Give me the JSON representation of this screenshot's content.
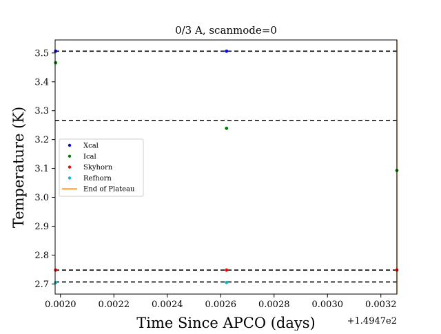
{
  "chart_data": {
    "type": "scatter",
    "title": "0/3 A, scanmode=0",
    "xlabel": "Time Since APCO (days)",
    "ylabel": "Temperature (K)",
    "x_offset_label": "+1.4947e2",
    "xlim": [
      0.00198,
      0.00326
    ],
    "ylim": [
      2.665,
      3.545
    ],
    "xticks": [
      0.002,
      0.0022,
      0.0024,
      0.0026,
      0.0028,
      0.003,
      0.0032
    ],
    "xtick_labels": [
      "0.0020",
      "0.0022",
      "0.0024",
      "0.0026",
      "0.0028",
      "0.0030",
      "0.0032"
    ],
    "yticks": [
      2.7,
      2.8,
      2.9,
      3.0,
      3.1,
      3.2,
      3.3,
      3.4,
      3.5
    ],
    "ytick_labels": [
      "2.7",
      "2.8",
      "2.9",
      "3.0",
      "3.1",
      "3.2",
      "3.3",
      "3.4",
      "3.5"
    ],
    "grid": false,
    "legend_position": "center-left",
    "series": [
      {
        "name": "Xcal",
        "color": "#0000ff",
        "points": [
          [
            0.001982,
            3.506
          ],
          [
            0.002622,
            3.506
          ]
        ]
      },
      {
        "name": "Ical",
        "color": "#008000",
        "points": [
          [
            0.001982,
            3.466
          ],
          [
            0.002622,
            3.239
          ],
          [
            0.00326,
            3.093
          ]
        ]
      },
      {
        "name": "Skyhorn",
        "color": "#ff0000",
        "points": [
          [
            0.001982,
            2.748
          ],
          [
            0.002622,
            2.748
          ],
          [
            0.00326,
            2.748
          ]
        ]
      },
      {
        "name": "Refhorn",
        "color": "#00bfbf",
        "points": [
          [
            0.001982,
            2.705
          ],
          [
            0.002622,
            2.705
          ]
        ]
      }
    ],
    "vertical_lines": [
      {
        "name": "End of Plateau",
        "color": "#ff7f0e",
        "x": 0.00326
      }
    ],
    "reference_lines": [
      {
        "y": 3.506,
        "style": "dashed",
        "color": "#000000"
      },
      {
        "y": 3.266,
        "style": "dashed",
        "color": "#000000"
      },
      {
        "y": 2.748,
        "style": "dashed",
        "color": "#000000"
      },
      {
        "y": 2.707,
        "style": "dashed",
        "color": "#000000"
      }
    ]
  }
}
